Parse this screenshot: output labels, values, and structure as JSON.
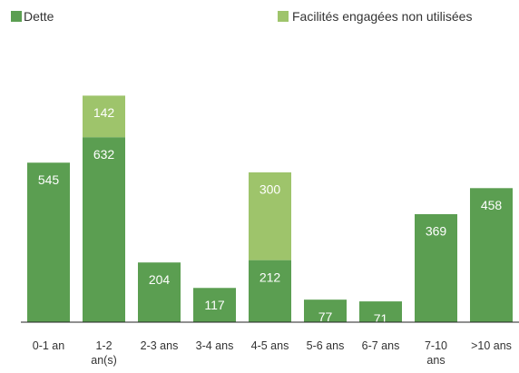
{
  "chart_data": {
    "type": "bar",
    "stacked": true,
    "categories": [
      "0-1 an",
      "1-2 an(s)",
      "2-3 ans",
      "3-4 ans",
      "4-5 ans",
      "5-6 ans",
      "6-7 ans",
      "7-10 ans",
      ">10 ans"
    ],
    "series": [
      {
        "name": "Dette",
        "color": "#5b9e51",
        "values": [
          545,
          632,
          204,
          117,
          212,
          77,
          71,
          369,
          458
        ]
      },
      {
        "name": "Facilités engagées non utilisées",
        "color": "#9ec46b",
        "values": [
          null,
          142,
          null,
          null,
          300,
          null,
          null,
          null,
          null
        ]
      }
    ],
    "ylim": [
      0,
      800
    ]
  }
}
